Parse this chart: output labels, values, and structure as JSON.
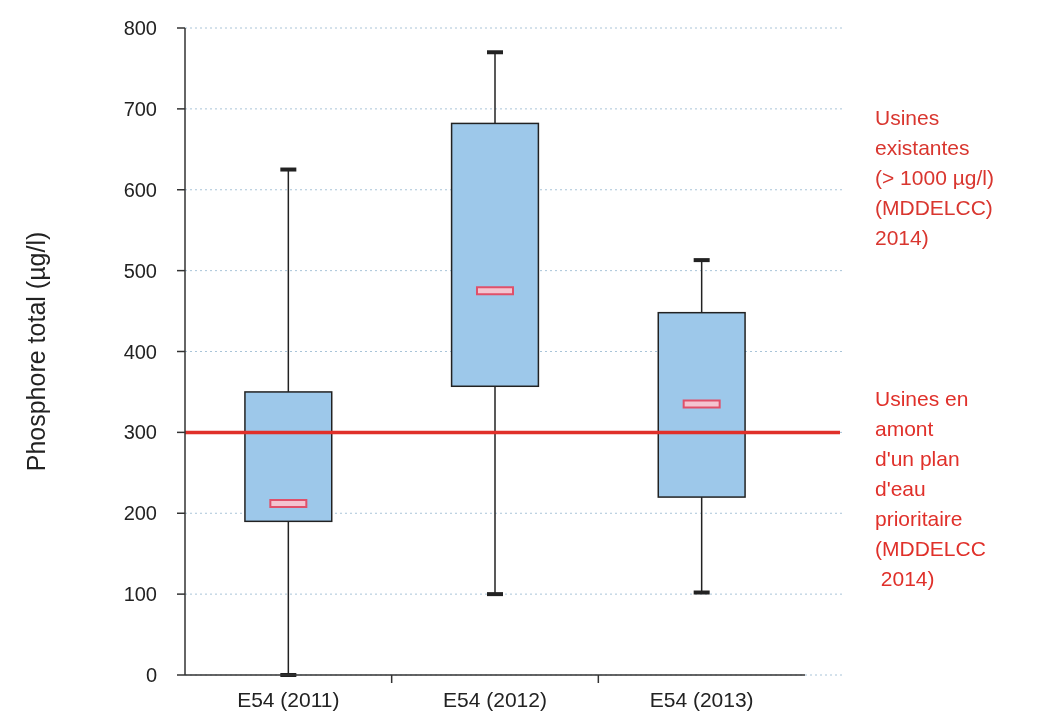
{
  "chart_data": {
    "type": "box",
    "ylabel": "Phosphore total (µg/l)",
    "categories": [
      "E54 (2011)",
      "E54 (2012)",
      "E54 (2013)"
    ],
    "color": "#9dc8ea",
    "boxes": [
      {
        "low": 0,
        "q1": 190,
        "median": 212,
        "q3": 350,
        "high": 625
      },
      {
        "low": 100,
        "q1": 357,
        "median": 475,
        "q3": 682,
        "high": 770
      },
      {
        "low": 102,
        "q1": 220,
        "median": 335,
        "q3": 448,
        "high": 513
      }
    ],
    "ylim": [
      0,
      800
    ],
    "yticks": [
      0,
      100,
      200,
      300,
      400,
      500,
      600,
      700,
      800
    ],
    "grid": "y",
    "ref_lines": [
      {
        "axis": "y",
        "value": 300,
        "label": "Usines en\namont\nd'un plan\nd'eau\nprioritaire\n(MDDELCC\n 2014)",
        "color": "#e0302a"
      }
    ],
    "annotations": [
      "Usines\nexistantes\n(> 1000 µg/l)\n(MDDELCC)\n2014)"
    ]
  }
}
